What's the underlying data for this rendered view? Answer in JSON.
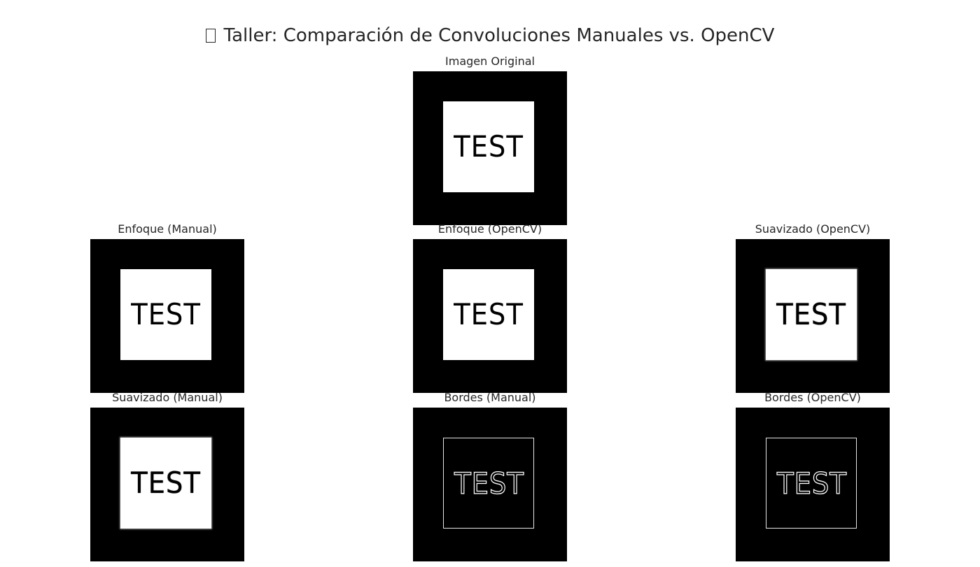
{
  "figure": {
    "title_icon": "missing-glyph-icon",
    "title": "Taller: Comparación de Convoluciones Manuales vs. OpenCV"
  },
  "panels": {
    "original": {
      "title": "Imagen Original",
      "word": "TEST"
    },
    "sharpen_manual": {
      "title": "Enfoque (Manual)",
      "word": "TEST"
    },
    "sharpen_opencv": {
      "title": "Enfoque (OpenCV)",
      "word": "TEST"
    },
    "blur_opencv": {
      "title": "Suavizado (OpenCV)",
      "word": "TEST"
    },
    "blur_manual": {
      "title": "Suavizado (Manual)",
      "word": "TEST"
    },
    "edges_manual": {
      "title": "Bordes (Manual)",
      "word": "TEST"
    },
    "edges_opencv": {
      "title": "Bordes (OpenCV)",
      "word": "TEST"
    }
  }
}
